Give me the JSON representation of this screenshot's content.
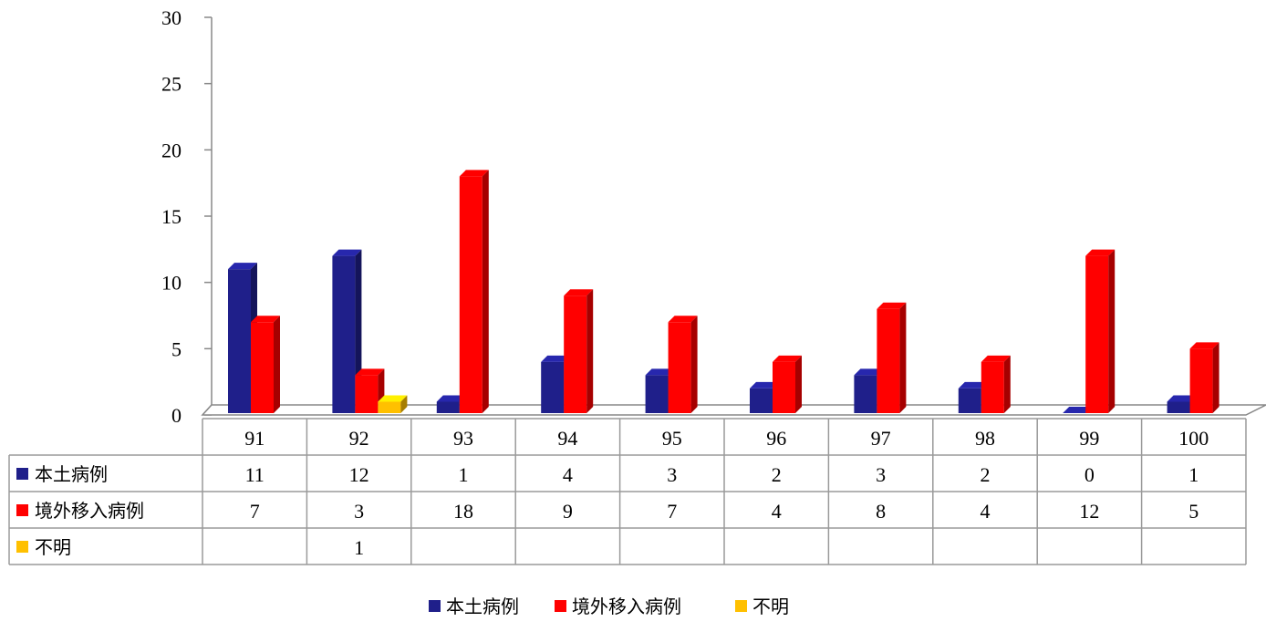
{
  "chart_data": {
    "type": "bar",
    "categories": [
      "91",
      "92",
      "93",
      "94",
      "95",
      "96",
      "97",
      "98",
      "99",
      "100"
    ],
    "series": [
      {
        "name": "本土病例",
        "values": [
          11,
          12,
          1,
          4,
          3,
          2,
          3,
          2,
          0,
          1
        ],
        "color": "#1f1f8a"
      },
      {
        "name": "境外移入病例",
        "values": [
          7,
          3,
          18,
          9,
          7,
          4,
          8,
          4,
          12,
          5
        ],
        "color": "#ff0000"
      },
      {
        "name": "不明",
        "values": [
          null,
          1,
          null,
          null,
          null,
          null,
          null,
          null,
          null,
          null
        ],
        "color": "#ffc000"
      }
    ],
    "ylim": [
      0,
      30
    ],
    "yticks": [
      "0",
      "5",
      "10",
      "15",
      "20",
      "25",
      "30"
    ],
    "grid": false,
    "style": "3d-clustered-with-data-table",
    "legend_position": "bottom"
  }
}
